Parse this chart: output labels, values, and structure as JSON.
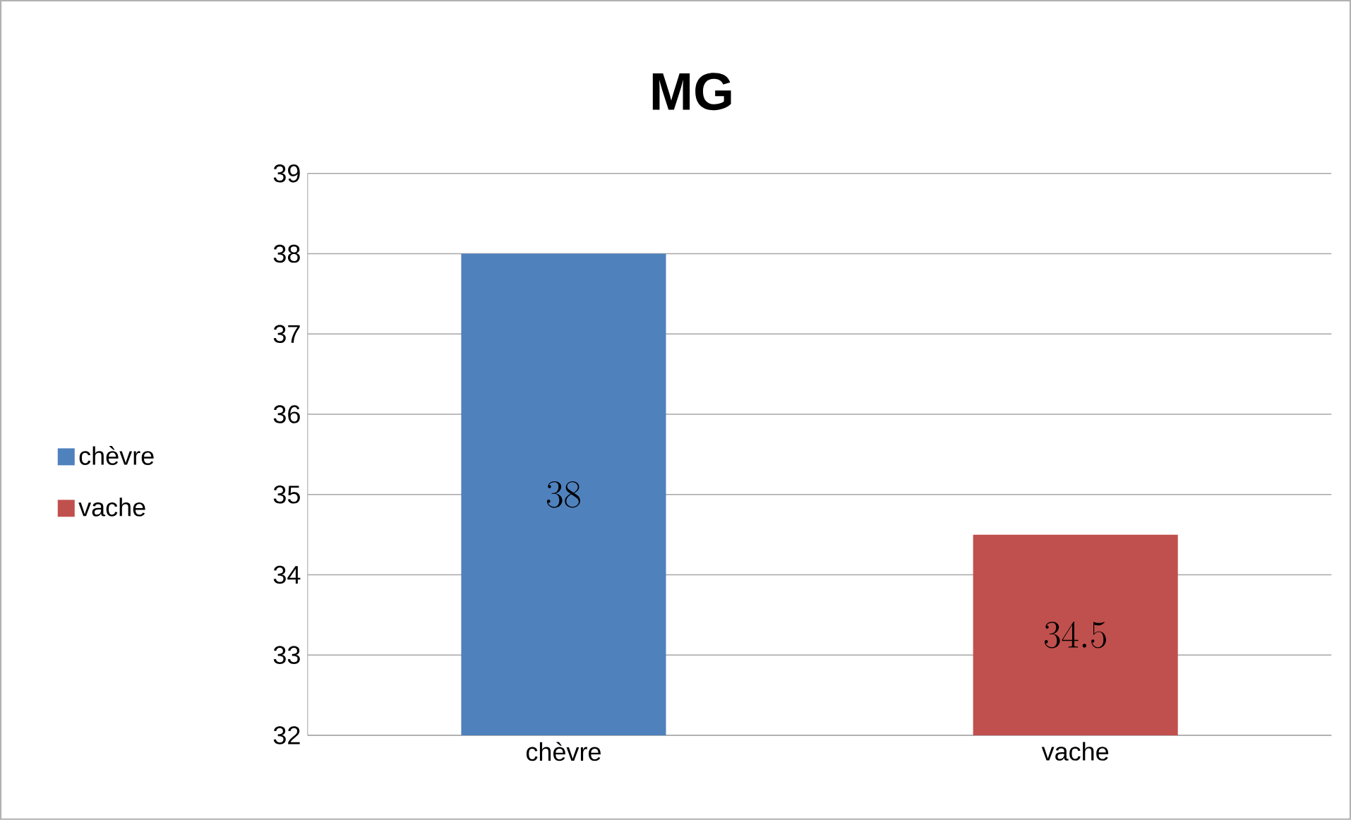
{
  "chart_data": {
    "type": "bar",
    "title": "MG",
    "categories": [
      "chèvre",
      "vache"
    ],
    "series": [
      {
        "name": "chèvre",
        "color": "#4f81bd",
        "values": [
          38,
          null
        ]
      },
      {
        "name": "vache",
        "color": "#c0504d",
        "values": [
          null,
          34.5
        ]
      }
    ],
    "ylim": [
      32,
      39
    ],
    "yticks": [
      32,
      33,
      34,
      35,
      36,
      37,
      38,
      39
    ],
    "grid": "y",
    "legend": "left",
    "data_labels": true
  }
}
